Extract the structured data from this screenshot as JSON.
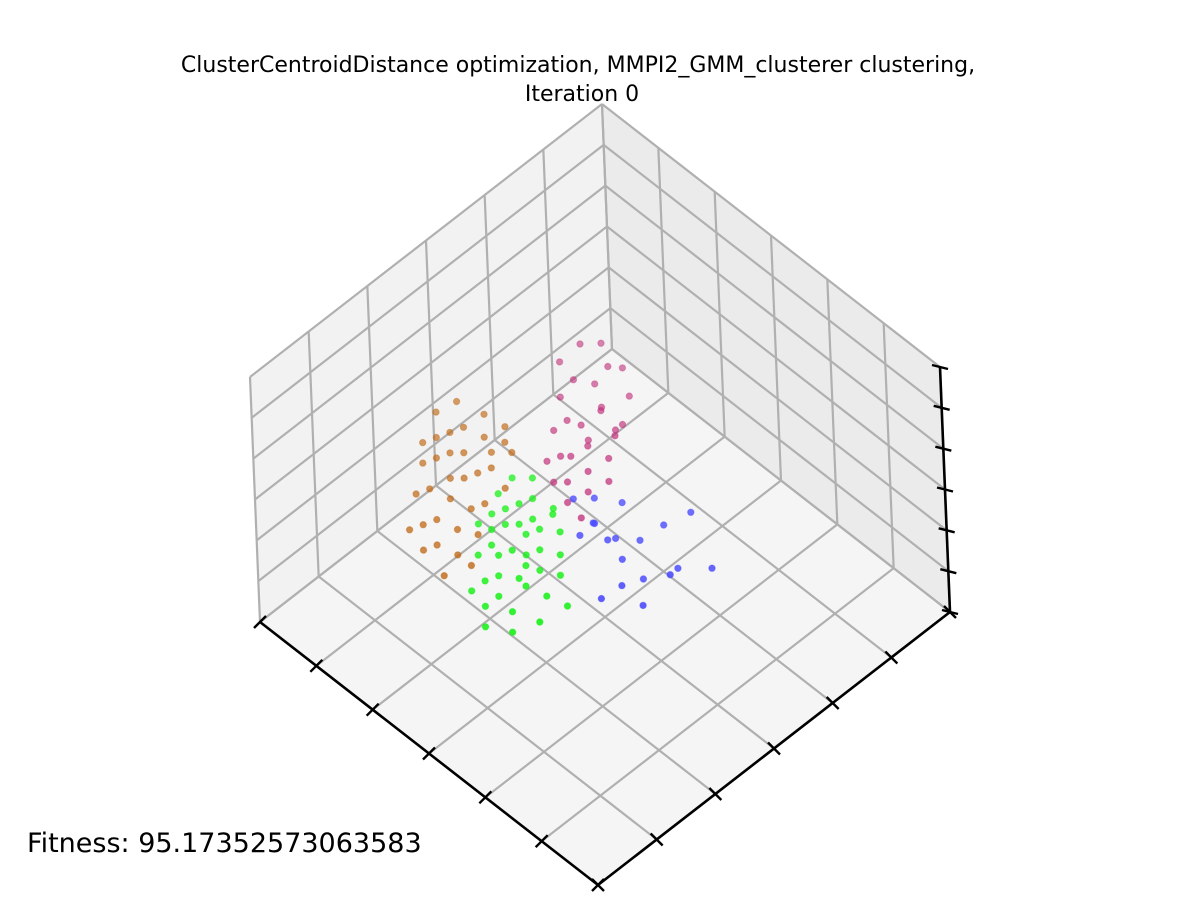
{
  "chart_data": {
    "type": "scatter",
    "projection": "3d",
    "title_line1": "ClusterCentroidDistance optimization, MMPI2_GMM_clusterer clustering,",
    "title_line2": "Iteration 0",
    "xlabel": "",
    "ylabel": "",
    "zlabel": "",
    "grid": true,
    "tick_labels_visible": false,
    "fitness_label": "Fitness: 95.17352573063583",
    "colors": {
      "blue": "#4a4aff",
      "magenta": "#c0307a",
      "green": "#18f018",
      "orange": "#c06a18",
      "pane_back": "#f2f2f2",
      "pane_side": "#ebebeb",
      "pane_floor": "#f5f5f5",
      "grid": "#b0b0b0",
      "axis": "#000000"
    },
    "series": [
      {
        "color_key": "blue",
        "points": [
          [
            0.3,
            0.62,
            0.28
          ],
          [
            0.36,
            0.58,
            0.26
          ],
          [
            0.42,
            0.6,
            0.35
          ],
          [
            0.34,
            0.54,
            0.3
          ],
          [
            0.4,
            0.52,
            0.24
          ],
          [
            0.45,
            0.56,
            0.3
          ],
          [
            0.38,
            0.64,
            0.4
          ],
          [
            0.44,
            0.5,
            0.3
          ],
          [
            0.4,
            0.46,
            0.28
          ],
          [
            0.48,
            0.52,
            0.32
          ],
          [
            0.5,
            0.56,
            0.4
          ],
          [
            0.52,
            0.5,
            0.36
          ],
          [
            0.46,
            0.48,
            0.38
          ],
          [
            0.54,
            0.52,
            0.42
          ],
          [
            0.42,
            0.42,
            0.25
          ],
          [
            0.48,
            0.46,
            0.45
          ],
          [
            0.56,
            0.48,
            0.44
          ],
          [
            0.36,
            0.48,
            0.22
          ],
          [
            0.5,
            0.44,
            0.4
          ]
        ]
      },
      {
        "color_key": "magenta",
        "points": [
          [
            0.62,
            0.7,
            0.55
          ],
          [
            0.66,
            0.72,
            0.6
          ],
          [
            0.6,
            0.66,
            0.5
          ],
          [
            0.64,
            0.64,
            0.55
          ],
          [
            0.68,
            0.66,
            0.58
          ],
          [
            0.7,
            0.62,
            0.62
          ],
          [
            0.58,
            0.6,
            0.45
          ],
          [
            0.62,
            0.58,
            0.48
          ],
          [
            0.66,
            0.6,
            0.5
          ],
          [
            0.6,
            0.56,
            0.42
          ],
          [
            0.64,
            0.55,
            0.45
          ],
          [
            0.68,
            0.58,
            0.52
          ],
          [
            0.56,
            0.58,
            0.4
          ],
          [
            0.58,
            0.54,
            0.38
          ],
          [
            0.62,
            0.52,
            0.4
          ],
          [
            0.66,
            0.54,
            0.44
          ],
          [
            0.7,
            0.56,
            0.48
          ],
          [
            0.72,
            0.6,
            0.55
          ],
          [
            0.6,
            0.5,
            0.36
          ],
          [
            0.64,
            0.5,
            0.4
          ],
          [
            0.74,
            0.62,
            0.65
          ],
          [
            0.68,
            0.52,
            0.42
          ],
          [
            0.58,
            0.62,
            0.52
          ],
          [
            0.72,
            0.66,
            0.7
          ],
          [
            0.7,
            0.7,
            0.68
          ],
          [
            0.62,
            0.62,
            0.58
          ],
          [
            0.66,
            0.68,
            0.65
          ],
          [
            0.64,
            0.6,
            0.46
          ],
          [
            0.6,
            0.64,
            0.5
          ],
          [
            0.56,
            0.5,
            0.34
          ]
        ]
      },
      {
        "color_key": "green",
        "points": [
          [
            0.56,
            0.44,
            0.35
          ],
          [
            0.6,
            0.46,
            0.38
          ],
          [
            0.62,
            0.42,
            0.36
          ],
          [
            0.58,
            0.4,
            0.3
          ],
          [
            0.64,
            0.44,
            0.4
          ],
          [
            0.66,
            0.42,
            0.38
          ],
          [
            0.6,
            0.38,
            0.28
          ],
          [
            0.62,
            0.36,
            0.3
          ],
          [
            0.66,
            0.38,
            0.34
          ],
          [
            0.68,
            0.4,
            0.36
          ],
          [
            0.64,
            0.34,
            0.28
          ],
          [
            0.56,
            0.38,
            0.26
          ],
          [
            0.58,
            0.34,
            0.25
          ],
          [
            0.62,
            0.32,
            0.24
          ],
          [
            0.66,
            0.34,
            0.3
          ],
          [
            0.7,
            0.38,
            0.34
          ],
          [
            0.54,
            0.42,
            0.3
          ],
          [
            0.52,
            0.36,
            0.22
          ],
          [
            0.6,
            0.3,
            0.2
          ],
          [
            0.64,
            0.3,
            0.22
          ],
          [
            0.68,
            0.32,
            0.26
          ],
          [
            0.5,
            0.32,
            0.18
          ],
          [
            0.56,
            0.3,
            0.18
          ],
          [
            0.62,
            0.28,
            0.16
          ],
          [
            0.58,
            0.44,
            0.4
          ],
          [
            0.66,
            0.46,
            0.44
          ],
          [
            0.7,
            0.44,
            0.42
          ],
          [
            0.54,
            0.28,
            0.14
          ],
          [
            0.6,
            0.26,
            0.12
          ],
          [
            0.66,
            0.28,
            0.18
          ],
          [
            0.48,
            0.38,
            0.2
          ],
          [
            0.72,
            0.36,
            0.3
          ],
          [
            0.64,
            0.4,
            0.34
          ],
          [
            0.6,
            0.42,
            0.34
          ],
          [
            0.58,
            0.36,
            0.28
          ],
          [
            0.62,
            0.4,
            0.32
          ],
          [
            0.68,
            0.36,
            0.32
          ],
          [
            0.56,
            0.34,
            0.24
          ],
          [
            0.52,
            0.4,
            0.26
          ],
          [
            0.7,
            0.4,
            0.4
          ]
        ]
      },
      {
        "color_key": "orange",
        "points": [
          [
            0.72,
            0.46,
            0.48
          ],
          [
            0.76,
            0.48,
            0.52
          ],
          [
            0.78,
            0.44,
            0.5
          ],
          [
            0.74,
            0.42,
            0.44
          ],
          [
            0.8,
            0.46,
            0.55
          ],
          [
            0.82,
            0.42,
            0.52
          ],
          [
            0.76,
            0.4,
            0.42
          ],
          [
            0.78,
            0.38,
            0.4
          ],
          [
            0.82,
            0.38,
            0.46
          ],
          [
            0.84,
            0.4,
            0.5
          ],
          [
            0.72,
            0.38,
            0.36
          ],
          [
            0.74,
            0.36,
            0.34
          ],
          [
            0.78,
            0.34,
            0.36
          ],
          [
            0.8,
            0.36,
            0.4
          ],
          [
            0.84,
            0.36,
            0.44
          ],
          [
            0.86,
            0.38,
            0.48
          ],
          [
            0.7,
            0.34,
            0.3
          ],
          [
            0.74,
            0.32,
            0.3
          ],
          [
            0.78,
            0.3,
            0.32
          ],
          [
            0.82,
            0.32,
            0.38
          ],
          [
            0.86,
            0.34,
            0.42
          ],
          [
            0.76,
            0.28,
            0.26
          ],
          [
            0.8,
            0.28,
            0.3
          ],
          [
            0.72,
            0.3,
            0.24
          ],
          [
            0.88,
            0.4,
            0.54
          ],
          [
            0.84,
            0.3,
            0.36
          ],
          [
            0.7,
            0.42,
            0.4
          ],
          [
            0.76,
            0.44,
            0.46
          ],
          [
            0.8,
            0.4,
            0.46
          ],
          [
            0.74,
            0.46,
            0.5
          ],
          [
            0.86,
            0.44,
            0.56
          ],
          [
            0.78,
            0.26,
            0.24
          ],
          [
            0.82,
            0.26,
            0.28
          ],
          [
            0.72,
            0.26,
            0.2
          ],
          [
            0.68,
            0.3,
            0.24
          ],
          [
            0.88,
            0.36,
            0.46
          ]
        ]
      }
    ]
  }
}
